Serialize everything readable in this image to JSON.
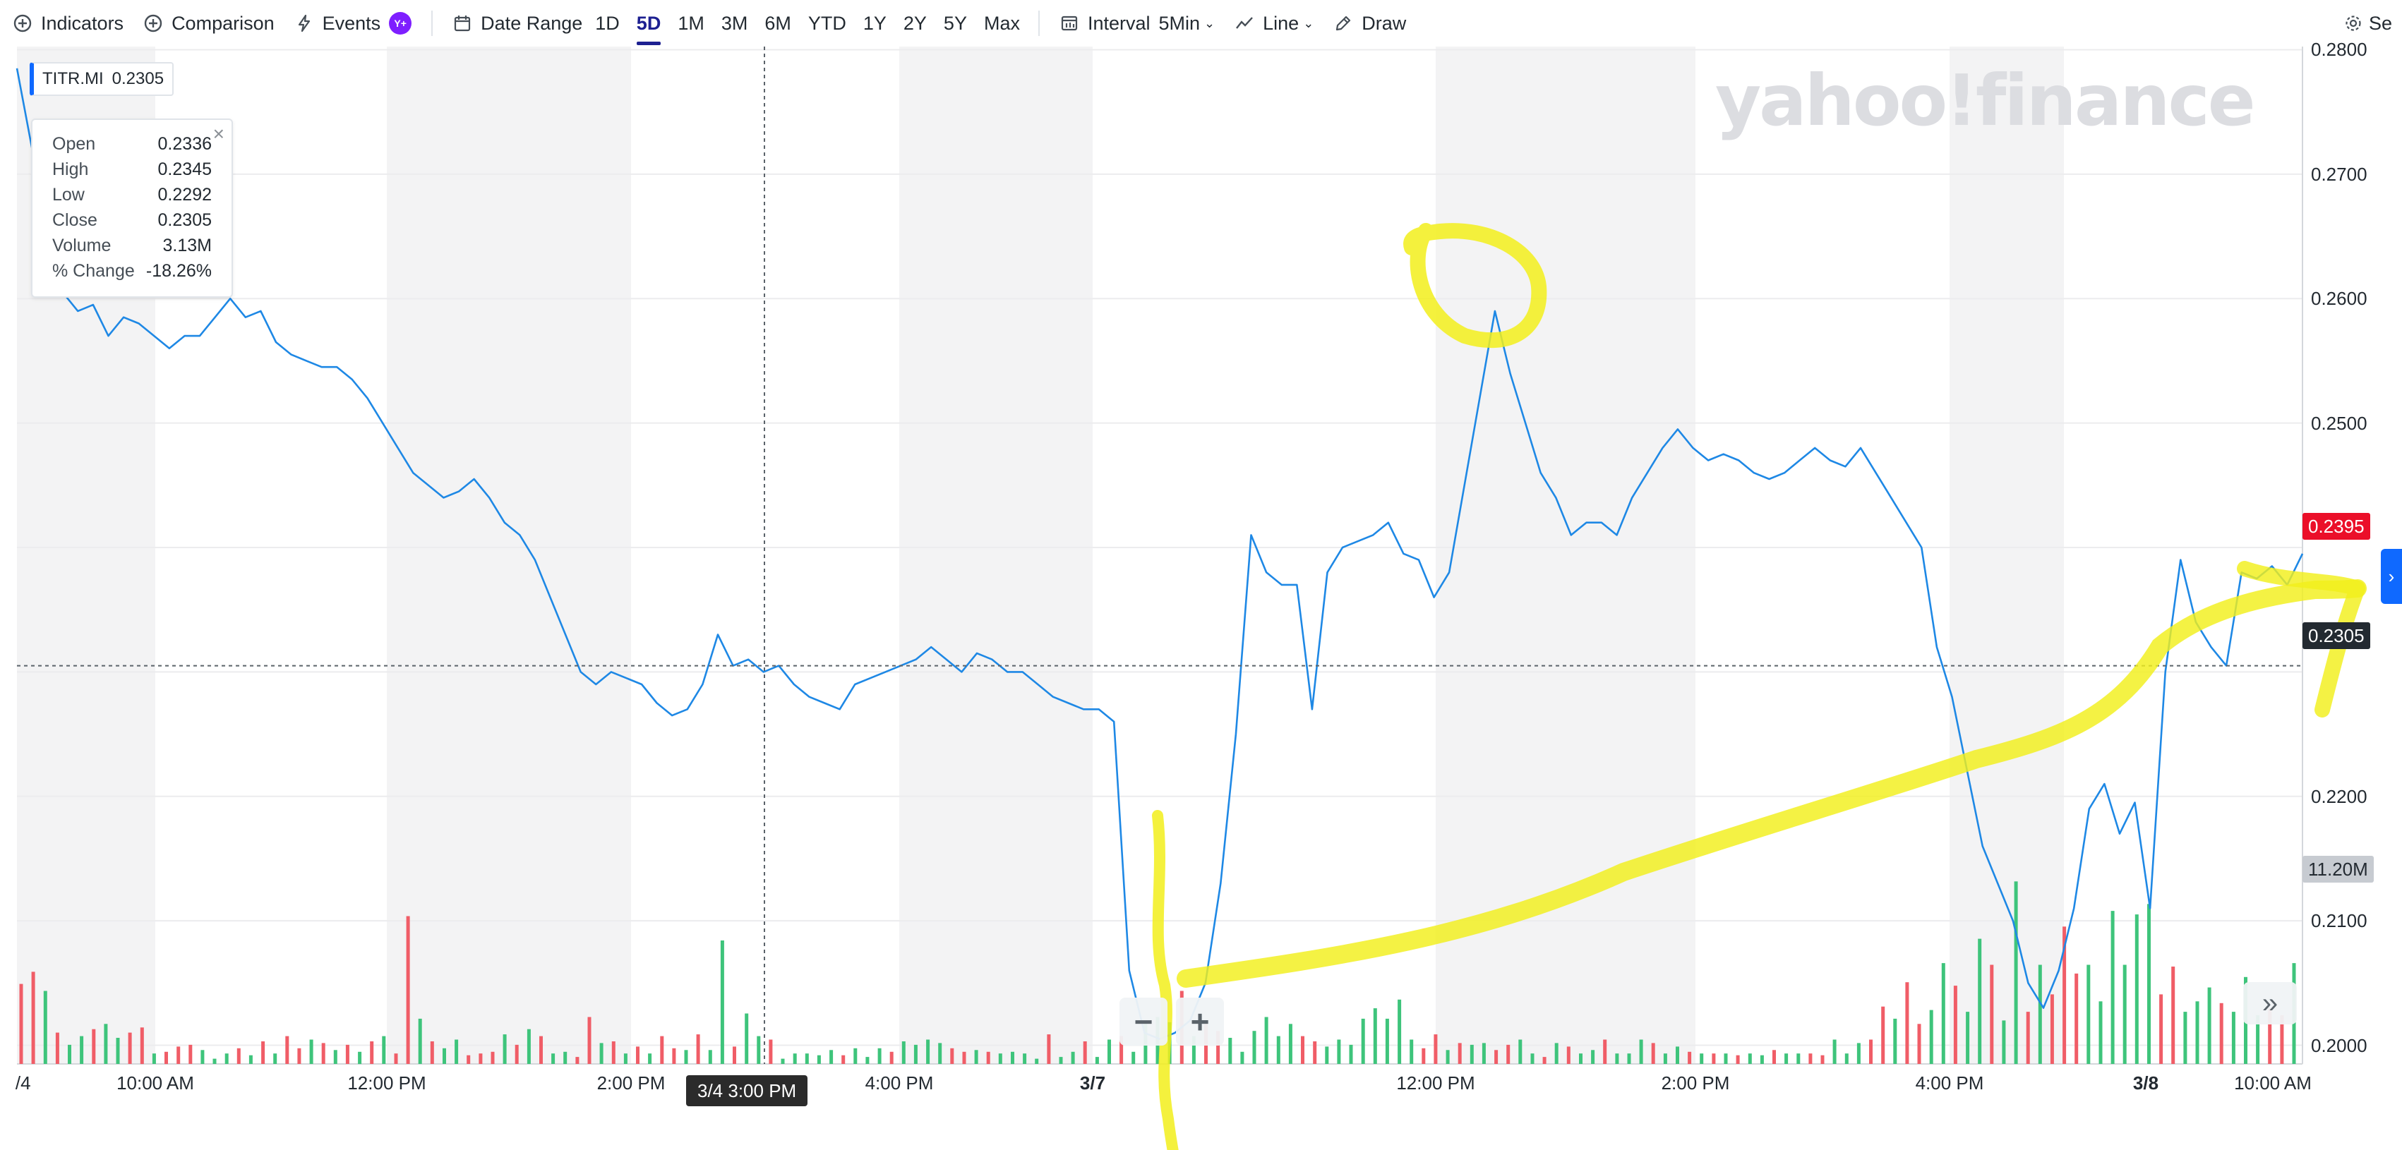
{
  "toolbar": {
    "indicators_label": "Indicators",
    "comparison_label": "Comparison",
    "events_label": "Events",
    "events_badge": "Y+",
    "date_range_label": "Date Range",
    "ranges": [
      "1D",
      "5D",
      "1M",
      "3M",
      "6M",
      "YTD",
      "1Y",
      "2Y",
      "5Y",
      "Max"
    ],
    "active_range": "5D",
    "interval_label": "Interval",
    "interval_value": "5Min",
    "chart_type_value": "Line",
    "draw_label": "Draw",
    "settings_label": "Se"
  },
  "ticker": {
    "symbol": "TITR.MI",
    "price": "0.2305"
  },
  "tooltip": {
    "rows": [
      {
        "label": "Open",
        "value": "0.2336"
      },
      {
        "label": "High",
        "value": "0.2345"
      },
      {
        "label": "Low",
        "value": "0.2292"
      },
      {
        "label": "Close",
        "value": "0.2305"
      },
      {
        "label": "Volume",
        "value": "3.13M"
      },
      {
        "label": "% Change",
        "value": "-18.26%"
      }
    ]
  },
  "watermark": "yahoo!finance",
  "badges": {
    "last_price": "0.2395",
    "crosshair_price": "0.2305",
    "volume_max": "11.20M"
  },
  "crosshair_time": "3/4 3:00 PM",
  "chart_data": {
    "type": "line",
    "title": "",
    "xlabel": "",
    "ylabel": "",
    "ylim": [
      0.1985,
      0.2815
    ],
    "y_ticks": [
      "0.2800",
      "0.2700",
      "0.2600",
      "0.2500",
      "0.2200",
      "0.2100",
      "0.2000"
    ],
    "x_tick_labels": [
      "/4",
      "10:00 AM",
      "12:00 PM",
      "2:00 PM",
      "4:00 PM",
      "3/7",
      "12:00 PM",
      "2:00 PM",
      "4:00 PM",
      "3/8",
      "10:00 AM"
    ],
    "series": [
      {
        "values": [
          0.2785,
          0.272,
          0.265,
          0.2605,
          0.259,
          0.2595,
          0.257,
          0.2585,
          0.258,
          0.257,
          0.256,
          0.257,
          0.257,
          0.2585,
          0.26,
          0.2585,
          0.259,
          0.2565,
          0.2555,
          0.255,
          0.2545,
          0.2545,
          0.2535,
          0.252,
          0.25,
          0.248,
          0.246,
          0.245,
          0.244,
          0.2445,
          0.2455,
          0.244,
          0.242,
          0.241,
          0.239,
          0.236,
          0.233,
          0.23,
          0.229,
          0.23,
          0.2295,
          0.229,
          0.2275,
          0.2265,
          0.227,
          0.229,
          0.233,
          0.2305,
          0.231,
          0.23,
          0.2305,
          0.229,
          0.228,
          0.2275,
          0.227,
          0.229,
          0.2295,
          0.23,
          0.2305,
          0.231,
          0.232,
          0.231,
          0.23,
          0.2315,
          0.231,
          0.23,
          0.23,
          0.229,
          0.228,
          0.2275,
          0.227,
          0.227,
          0.226,
          0.206,
          0.201,
          0.2005,
          0.201,
          0.202,
          0.205,
          0.213,
          0.225,
          0.241,
          0.238,
          0.237,
          0.237,
          0.227,
          0.238,
          0.24,
          0.2405,
          0.241,
          0.242,
          0.2395,
          0.239,
          0.236,
          0.238,
          0.245,
          0.252,
          0.259,
          0.254,
          0.25,
          0.246,
          0.244,
          0.241,
          0.242,
          0.242,
          0.241,
          0.244,
          0.246,
          0.248,
          0.2495,
          0.248,
          0.247,
          0.2475,
          0.247,
          0.246,
          0.2455,
          0.246,
          0.247,
          0.248,
          0.247,
          0.2465,
          0.248,
          0.246,
          0.244,
          0.242,
          0.24,
          0.232,
          0.228,
          0.222,
          0.216,
          0.213,
          0.21,
          0.205,
          0.203,
          0.206,
          0.211,
          0.219,
          0.221,
          0.217,
          0.2195,
          0.211,
          0.23,
          0.239,
          0.234,
          0.232,
          0.2305,
          0.238,
          0.2375,
          0.2385,
          0.237,
          0.2395
        ]
      }
    ],
    "volume": {
      "max_label": "11.20M",
      "bars": [
        {
          "v": 4.6,
          "c": "r"
        },
        {
          "v": 5.3,
          "c": "r"
        },
        {
          "v": 4.2,
          "c": "g"
        },
        {
          "v": 1.8,
          "c": "r"
        },
        {
          "v": 1.1,
          "c": "g"
        },
        {
          "v": 1.6,
          "c": "g"
        },
        {
          "v": 2.0,
          "c": "r"
        },
        {
          "v": 2.3,
          "c": "g"
        },
        {
          "v": 1.5,
          "c": "g"
        },
        {
          "v": 1.8,
          "c": "r"
        },
        {
          "v": 2.1,
          "c": "r"
        },
        {
          "v": 0.6,
          "c": "g"
        },
        {
          "v": 0.7,
          "c": "r"
        },
        {
          "v": 1.0,
          "c": "r"
        },
        {
          "v": 1.1,
          "c": "r"
        },
        {
          "v": 0.8,
          "c": "g"
        },
        {
          "v": 0.3,
          "c": "g"
        },
        {
          "v": 0.6,
          "c": "g"
        },
        {
          "v": 0.9,
          "c": "r"
        },
        {
          "v": 0.5,
          "c": "g"
        },
        {
          "v": 1.3,
          "c": "r"
        },
        {
          "v": 0.6,
          "c": "g"
        },
        {
          "v": 1.6,
          "c": "r"
        },
        {
          "v": 0.9,
          "c": "r"
        },
        {
          "v": 1.4,
          "c": "g"
        },
        {
          "v": 1.2,
          "c": "r"
        },
        {
          "v": 0.8,
          "c": "g"
        },
        {
          "v": 1.1,
          "c": "r"
        },
        {
          "v": 0.7,
          "c": "g"
        },
        {
          "v": 1.3,
          "c": "r"
        },
        {
          "v": 1.6,
          "c": "g"
        },
        {
          "v": 0.6,
          "c": "r"
        },
        {
          "v": 8.5,
          "c": "r"
        },
        {
          "v": 2.6,
          "c": "g"
        },
        {
          "v": 1.3,
          "c": "r"
        },
        {
          "v": 0.9,
          "c": "g"
        },
        {
          "v": 1.4,
          "c": "g"
        },
        {
          "v": 0.5,
          "c": "r"
        },
        {
          "v": 0.6,
          "c": "r"
        },
        {
          "v": 0.7,
          "c": "r"
        },
        {
          "v": 1.7,
          "c": "g"
        },
        {
          "v": 1.1,
          "c": "r"
        },
        {
          "v": 2.0,
          "c": "g"
        },
        {
          "v": 1.6,
          "c": "r"
        },
        {
          "v": 0.6,
          "c": "g"
        },
        {
          "v": 0.7,
          "c": "g"
        },
        {
          "v": 0.4,
          "c": "r"
        },
        {
          "v": 2.7,
          "c": "r"
        },
        {
          "v": 1.2,
          "c": "g"
        },
        {
          "v": 1.3,
          "c": "r"
        },
        {
          "v": 0.6,
          "c": "g"
        },
        {
          "v": 1.0,
          "c": "r"
        },
        {
          "v": 0.6,
          "c": "g"
        },
        {
          "v": 1.6,
          "c": "r"
        },
        {
          "v": 0.9,
          "c": "r"
        },
        {
          "v": 0.8,
          "c": "g"
        },
        {
          "v": 1.7,
          "c": "r"
        },
        {
          "v": 0.8,
          "c": "g"
        },
        {
          "v": 7.1,
          "c": "g"
        },
        {
          "v": 1.0,
          "c": "r"
        },
        {
          "v": 2.9,
          "c": "g"
        },
        {
          "v": 1.6,
          "c": "g"
        },
        {
          "v": 1.4,
          "c": "r"
        },
        {
          "v": 0.3,
          "c": "g"
        },
        {
          "v": 0.6,
          "c": "g"
        },
        {
          "v": 0.6,
          "c": "g"
        },
        {
          "v": 0.5,
          "c": "g"
        },
        {
          "v": 0.8,
          "c": "g"
        },
        {
          "v": 0.5,
          "c": "r"
        },
        {
          "v": 0.9,
          "c": "g"
        },
        {
          "v": 0.4,
          "c": "g"
        },
        {
          "v": 0.9,
          "c": "g"
        },
        {
          "v": 0.7,
          "c": "r"
        },
        {
          "v": 1.3,
          "c": "g"
        },
        {
          "v": 1.1,
          "c": "g"
        },
        {
          "v": 1.4,
          "c": "g"
        },
        {
          "v": 1.2,
          "c": "g"
        },
        {
          "v": 0.9,
          "c": "r"
        },
        {
          "v": 0.7,
          "c": "r"
        },
        {
          "v": 0.8,
          "c": "g"
        },
        {
          "v": 0.7,
          "c": "r"
        },
        {
          "v": 0.6,
          "c": "g"
        },
        {
          "v": 0.7,
          "c": "g"
        },
        {
          "v": 0.6,
          "c": "g"
        },
        {
          "v": 0.3,
          "c": "g"
        },
        {
          "v": 1.7,
          "c": "r"
        },
        {
          "v": 0.4,
          "c": "g"
        },
        {
          "v": 0.7,
          "c": "g"
        },
        {
          "v": 1.3,
          "c": "r"
        },
        {
          "v": 0.4,
          "c": "g"
        },
        {
          "v": 1.4,
          "c": "g"
        },
        {
          "v": 1.6,
          "c": "r"
        },
        {
          "v": 0.7,
          "c": "g"
        },
        {
          "v": 2.4,
          "c": "g"
        },
        {
          "v": 2.7,
          "c": "g"
        },
        {
          "v": 2.4,
          "c": "g"
        },
        {
          "v": 4.2,
          "c": "r"
        },
        {
          "v": 1.6,
          "c": "g"
        },
        {
          "v": 2.4,
          "c": "r"
        },
        {
          "v": 1.9,
          "c": "r"
        },
        {
          "v": 1.5,
          "c": "g"
        },
        {
          "v": 0.7,
          "c": "g"
        },
        {
          "v": 1.9,
          "c": "g"
        },
        {
          "v": 2.7,
          "c": "g"
        },
        {
          "v": 1.6,
          "c": "g"
        },
        {
          "v": 2.3,
          "c": "g"
        },
        {
          "v": 1.6,
          "c": "r"
        },
        {
          "v": 1.3,
          "c": "r"
        },
        {
          "v": 1.0,
          "c": "g"
        },
        {
          "v": 1.4,
          "c": "g"
        },
        {
          "v": 1.1,
          "c": "g"
        },
        {
          "v": 2.6,
          "c": "g"
        },
        {
          "v": 3.2,
          "c": "g"
        },
        {
          "v": 2.6,
          "c": "g"
        },
        {
          "v": 3.7,
          "c": "g"
        },
        {
          "v": 1.4,
          "c": "g"
        },
        {
          "v": 0.9,
          "c": "r"
        },
        {
          "v": 1.7,
          "c": "r"
        },
        {
          "v": 0.8,
          "c": "g"
        },
        {
          "v": 1.2,
          "c": "r"
        },
        {
          "v": 1.1,
          "c": "g"
        },
        {
          "v": 1.2,
          "c": "g"
        },
        {
          "v": 0.8,
          "c": "r"
        },
        {
          "v": 1.1,
          "c": "r"
        },
        {
          "v": 1.4,
          "c": "g"
        },
        {
          "v": 0.6,
          "c": "g"
        },
        {
          "v": 0.4,
          "c": "r"
        },
        {
          "v": 1.2,
          "c": "g"
        },
        {
          "v": 1.0,
          "c": "r"
        },
        {
          "v": 0.6,
          "c": "g"
        },
        {
          "v": 0.8,
          "c": "g"
        },
        {
          "v": 1.4,
          "c": "r"
        },
        {
          "v": 0.6,
          "c": "g"
        },
        {
          "v": 0.6,
          "c": "g"
        },
        {
          "v": 1.4,
          "c": "g"
        },
        {
          "v": 1.2,
          "c": "r"
        },
        {
          "v": 0.6,
          "c": "g"
        },
        {
          "v": 1.0,
          "c": "g"
        },
        {
          "v": 0.7,
          "c": "r"
        },
        {
          "v": 0.6,
          "c": "g"
        },
        {
          "v": 0.6,
          "c": "r"
        },
        {
          "v": 0.6,
          "c": "g"
        },
        {
          "v": 0.5,
          "c": "r"
        },
        {
          "v": 0.6,
          "c": "g"
        },
        {
          "v": 0.5,
          "c": "g"
        },
        {
          "v": 0.8,
          "c": "r"
        },
        {
          "v": 0.6,
          "c": "g"
        },
        {
          "v": 0.6,
          "c": "g"
        },
        {
          "v": 0.6,
          "c": "r"
        },
        {
          "v": 0.5,
          "c": "r"
        },
        {
          "v": 1.4,
          "c": "g"
        },
        {
          "v": 0.6,
          "c": "g"
        },
        {
          "v": 1.2,
          "c": "g"
        },
        {
          "v": 1.4,
          "c": "r"
        },
        {
          "v": 3.3,
          "c": "r"
        },
        {
          "v": 2.6,
          "c": "g"
        },
        {
          "v": 4.7,
          "c": "r"
        },
        {
          "v": 2.3,
          "c": "r"
        },
        {
          "v": 3.1,
          "c": "g"
        },
        {
          "v": 5.8,
          "c": "g"
        },
        {
          "v": 4.5,
          "c": "r"
        },
        {
          "v": 3.0,
          "c": "g"
        },
        {
          "v": 7.2,
          "c": "g"
        },
        {
          "v": 5.7,
          "c": "r"
        },
        {
          "v": 2.5,
          "c": "g"
        },
        {
          "v": 10.5,
          "c": "g"
        },
        {
          "v": 3.0,
          "c": "r"
        },
        {
          "v": 5.7,
          "c": "g"
        },
        {
          "v": 4.0,
          "c": "r"
        },
        {
          "v": 7.9,
          "c": "r"
        },
        {
          "v": 5.2,
          "c": "r"
        },
        {
          "v": 5.7,
          "c": "g"
        },
        {
          "v": 3.6,
          "c": "g"
        },
        {
          "v": 8.8,
          "c": "g"
        },
        {
          "v": 5.7,
          "c": "g"
        },
        {
          "v": 8.6,
          "c": "g"
        },
        {
          "v": 9.2,
          "c": "g"
        },
        {
          "v": 4.0,
          "c": "r"
        },
        {
          "v": 5.6,
          "c": "r"
        },
        {
          "v": 3.0,
          "c": "g"
        },
        {
          "v": 3.6,
          "c": "g"
        },
        {
          "v": 4.4,
          "c": "g"
        },
        {
          "v": 3.5,
          "c": "r"
        },
        {
          "v": 3.0,
          "c": "g"
        },
        {
          "v": 5.0,
          "c": "g"
        },
        {
          "v": 2.8,
          "c": "g"
        },
        {
          "v": 3.2,
          "c": "r"
        },
        {
          "v": 2.8,
          "c": "r"
        },
        {
          "v": 5.8,
          "c": "g"
        }
      ]
    },
    "shaded_sessions": true,
    "colors": {
      "line": "#1e88e5",
      "up": "#3ec47b",
      "down": "#f05d67",
      "annotation": "#f2ef1b",
      "shade": "#f3f3f4"
    }
  }
}
